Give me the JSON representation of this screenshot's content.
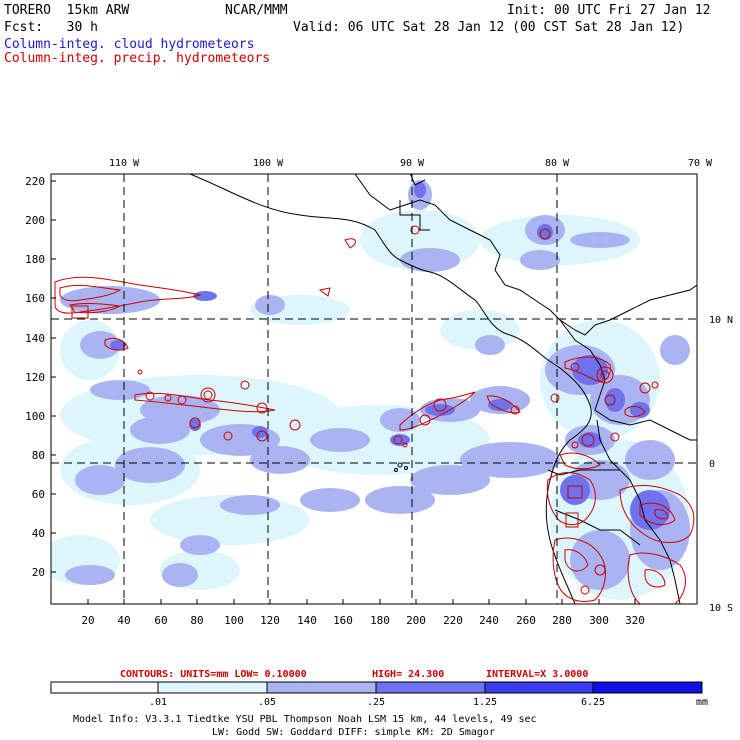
{
  "header": {
    "model": "TORERO  15km ARW",
    "org": "NCAR/MMM",
    "init": "Init: 00 UTC Fri 27 Jan 12",
    "fcst": "Fcst:   30 h",
    "valid": "Valid: 06 UTC Sat 28 Jan 12 (00 CST Sat 28 Jan 12)",
    "field1": "Column-integ. cloud hydrometeors",
    "field2": "Column-integ. precip. hydrometeors"
  },
  "map": {
    "lon_labels": [
      "110 W",
      "100 W",
      "90 W",
      "80 W",
      "70 W"
    ],
    "lat_labels": [
      "10 N",
      "0",
      "10 S"
    ],
    "y_ticks": [
      "220",
      "200",
      "180",
      "160",
      "140",
      "120",
      "100",
      "80",
      "60",
      "40",
      "20"
    ],
    "x_ticks": [
      "20",
      "40",
      "60",
      "80",
      "100",
      "120",
      "140",
      "160",
      "180",
      "200",
      "220",
      "240",
      "260",
      "280",
      "300",
      "320"
    ]
  },
  "contours": {
    "units": "CONTOURS:  UNITS=mm  LOW= 0.10000",
    "high": "HIGH=  24.300",
    "interval": "INTERVAL=X  3.0000"
  },
  "colorbar": {
    "labels": [
      ".01",
      ".05",
      ".25",
      "1.25",
      "6.25"
    ],
    "unit": "mm",
    "colors": [
      "#ffffff",
      "#ddf6fb",
      "#aab4f2",
      "#6f72ee",
      "#3a3cf0",
      "#1010e8"
    ]
  },
  "footer": {
    "line1": "Model Info: V3.3.1   Tiedtke YSU PBL  Thompson   Noah LSM  15 km,   44 levels,   49 sec",
    "line2": "LW: Godd SW: Goddard DIFF: simple KM: 2D Smagor"
  },
  "colors": {
    "cloud": "#1a1acc",
    "precip": "#cc0000"
  }
}
